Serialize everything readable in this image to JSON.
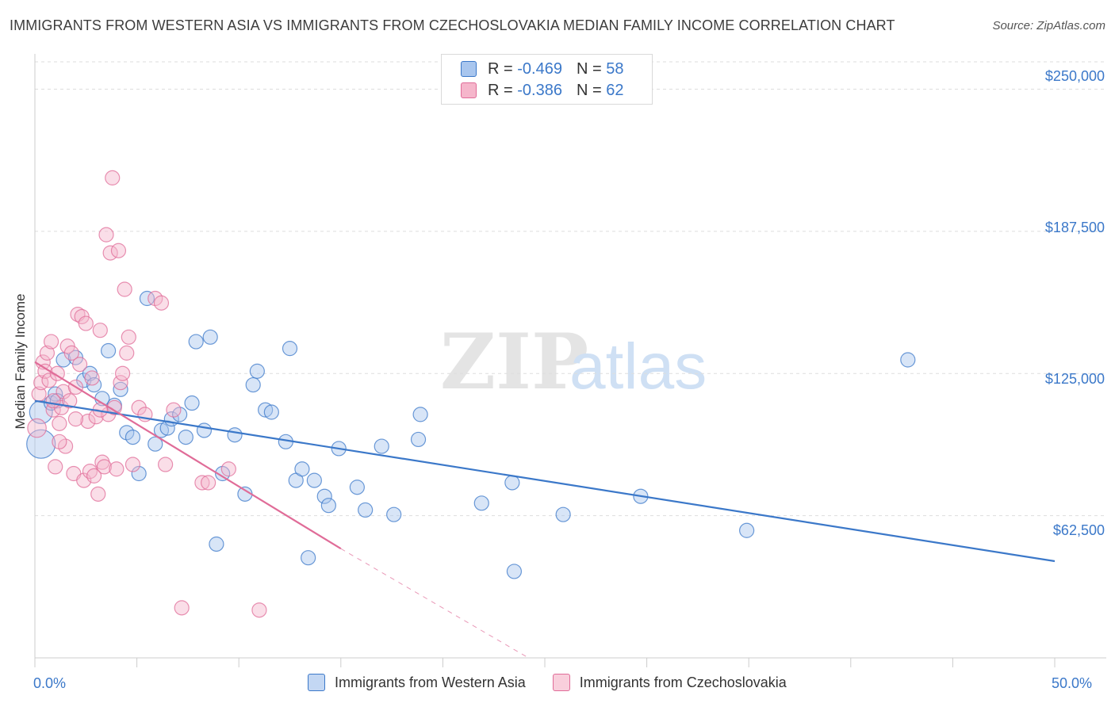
{
  "title": "IMMIGRANTS FROM WESTERN ASIA VS IMMIGRANTS FROM CZECHOSLOVAKIA MEDIAN FAMILY INCOME CORRELATION CHART",
  "source": "Source: ZipAtlas.com",
  "watermark": "ZIPatlas",
  "colors": {
    "blue": "#3b78c9",
    "blue_fill": "#a9c6ee",
    "pink": "#e06c98",
    "pink_fill": "#f5b6cb",
    "grid": "#dddddd",
    "axis_text": "#3b78c9"
  },
  "legend": {
    "rows": [
      {
        "r_label": "R = ",
        "r_value": "-0.469",
        "n_label": "N = ",
        "n_value": "58"
      },
      {
        "r_label": "R = ",
        "r_value": "-0.386",
        "n_label": "N = ",
        "n_value": "62"
      }
    ]
  },
  "bottom_legend": [
    "Immigrants from Western Asia",
    "Immigrants from Czechoslovakia"
  ],
  "chart_data": {
    "type": "scatter",
    "title": "IMMIGRANTS FROM WESTERN ASIA VS IMMIGRANTS FROM CZECHOSLOVAKIA MEDIAN FAMILY INCOME CORRELATION CHART",
    "xlabel": "",
    "ylabel": "Median Family Income",
    "xlim": [
      0,
      50
    ],
    "ylim": [
      0,
      262000
    ],
    "x_tick_labels": [
      "0.0%",
      "50.0%"
    ],
    "y_ticks": [
      62500,
      125000,
      187500,
      250000
    ],
    "y_tick_labels": [
      "$62,500",
      "$125,000",
      "$187,500",
      "$250,000"
    ],
    "grid": true,
    "legend_position": "top-center",
    "series": [
      {
        "name": "Immigrants from Western Asia",
        "color": "#3b78c9",
        "trend": {
          "x": [
            0,
            50
          ],
          "y": [
            113000,
            42500
          ]
        },
        "points": [
          [
            0.3,
            108000,
            3
          ],
          [
            0.3,
            94000,
            4
          ],
          [
            0.8,
            112000,
            1
          ],
          [
            1.0,
            116000,
            1
          ],
          [
            1.1,
            113000,
            1
          ],
          [
            1.4,
            131000,
            1
          ],
          [
            2.0,
            132000,
            1
          ],
          [
            2.4,
            122000,
            1
          ],
          [
            2.7,
            125000,
            1
          ],
          [
            2.9,
            120000,
            1
          ],
          [
            3.3,
            114000,
            1
          ],
          [
            3.6,
            135000,
            1
          ],
          [
            3.9,
            111000,
            1
          ],
          [
            4.2,
            118000,
            1
          ],
          [
            4.5,
            99000,
            1
          ],
          [
            4.8,
            97000,
            1
          ],
          [
            5.1,
            81000,
            1
          ],
          [
            5.5,
            158000,
            1
          ],
          [
            5.9,
            94000,
            1
          ],
          [
            6.2,
            100000,
            1
          ],
          [
            6.5,
            101000,
            1
          ],
          [
            6.7,
            105000,
            1
          ],
          [
            7.1,
            107000,
            1
          ],
          [
            7.4,
            97000,
            1
          ],
          [
            7.7,
            112000,
            1
          ],
          [
            7.9,
            139000,
            1
          ],
          [
            8.3,
            100000,
            1
          ],
          [
            8.6,
            141000,
            1
          ],
          [
            8.9,
            50000,
            1
          ],
          [
            9.2,
            81000,
            1
          ],
          [
            9.8,
            98000,
            1
          ],
          [
            10.3,
            72000,
            1
          ],
          [
            10.7,
            120000,
            1
          ],
          [
            10.9,
            126000,
            1
          ],
          [
            11.3,
            109000,
            1
          ],
          [
            11.6,
            108000,
            1
          ],
          [
            12.3,
            95000,
            1
          ],
          [
            12.5,
            136000,
            1
          ],
          [
            12.8,
            78000,
            1
          ],
          [
            13.1,
            83000,
            1
          ],
          [
            13.4,
            44000,
            1
          ],
          [
            13.7,
            78000,
            1
          ],
          [
            14.2,
            71000,
            1
          ],
          [
            14.4,
            67000,
            1
          ],
          [
            14.9,
            92000,
            1
          ],
          [
            15.8,
            75000,
            1
          ],
          [
            16.2,
            65000,
            1
          ],
          [
            17.0,
            93000,
            1
          ],
          [
            17.6,
            63000,
            1
          ],
          [
            18.9,
            107000,
            1
          ],
          [
            18.8,
            96000,
            1
          ],
          [
            21.9,
            68000,
            1
          ],
          [
            23.5,
            38000,
            1
          ],
          [
            23.4,
            77000,
            1
          ],
          [
            25.9,
            63000,
            1
          ],
          [
            29.7,
            71000,
            1
          ],
          [
            34.9,
            56000,
            1
          ],
          [
            42.8,
            131000,
            1
          ]
        ]
      },
      {
        "name": "Immigrants from Czechoslovakia",
        "color": "#e06c98",
        "trend": {
          "x": [
            0,
            15
          ],
          "y": [
            130000,
            48000
          ]
        },
        "trend_dashed": {
          "x": [
            15,
            24.2
          ],
          "y": [
            48000,
            0
          ]
        },
        "points": [
          [
            0.1,
            101000,
            2
          ],
          [
            0.2,
            116000,
            1
          ],
          [
            0.3,
            121000,
            1
          ],
          [
            0.4,
            130000,
            1
          ],
          [
            0.5,
            126000,
            1
          ],
          [
            0.6,
            134000,
            1
          ],
          [
            0.7,
            122000,
            1
          ],
          [
            0.8,
            139000,
            1
          ],
          [
            0.9,
            109000,
            1
          ],
          [
            1.0,
            84000,
            1
          ],
          [
            1.1,
            125000,
            1
          ],
          [
            1.2,
            103000,
            1
          ],
          [
            1.3,
            110000,
            1
          ],
          [
            1.4,
            117000,
            1
          ],
          [
            1.5,
            93000,
            1
          ],
          [
            1.6,
            137000,
            1
          ],
          [
            1.7,
            113000,
            1
          ],
          [
            1.8,
            134000,
            1
          ],
          [
            1.9,
            81000,
            1
          ],
          [
            2.0,
            119000,
            1
          ],
          [
            2.1,
            151000,
            1
          ],
          [
            2.2,
            129000,
            1
          ],
          [
            2.3,
            150000,
            1
          ],
          [
            2.4,
            78000,
            1
          ],
          [
            2.5,
            147000,
            1
          ],
          [
            2.6,
            104000,
            1
          ],
          [
            2.7,
            82000,
            1
          ],
          [
            2.8,
            123000,
            1
          ],
          [
            2.9,
            80000,
            1
          ],
          [
            3.0,
            106000,
            1
          ],
          [
            3.1,
            72000,
            1
          ],
          [
            3.2,
            144000,
            1
          ],
          [
            3.3,
            86000,
            1
          ],
          [
            3.4,
            84000,
            1
          ],
          [
            3.5,
            186000,
            1
          ],
          [
            3.6,
            107000,
            1
          ],
          [
            3.7,
            178000,
            1
          ],
          [
            3.8,
            211000,
            1
          ],
          [
            3.9,
            110000,
            1
          ],
          [
            4.0,
            83000,
            1
          ],
          [
            4.1,
            179000,
            1
          ],
          [
            4.2,
            121000,
            1
          ],
          [
            4.3,
            125000,
            1
          ],
          [
            4.4,
            162000,
            1
          ],
          [
            4.5,
            134000,
            1
          ],
          [
            4.6,
            141000,
            1
          ],
          [
            4.8,
            85000,
            1
          ],
          [
            5.1,
            110000,
            1
          ],
          [
            5.4,
            107000,
            1
          ],
          [
            5.9,
            158000,
            1
          ],
          [
            6.2,
            156000,
            1
          ],
          [
            6.4,
            85000,
            1
          ],
          [
            6.8,
            109000,
            1
          ],
          [
            7.2,
            22000,
            1
          ],
          [
            8.2,
            77000,
            1
          ],
          [
            8.5,
            77000,
            1
          ],
          [
            9.5,
            83000,
            1
          ],
          [
            11.0,
            21000,
            1
          ],
          [
            1.2,
            95000,
            1
          ],
          [
            0.9,
            113000,
            1
          ],
          [
            2.0,
            105000,
            1
          ],
          [
            3.2,
            109000,
            1
          ]
        ]
      }
    ]
  }
}
